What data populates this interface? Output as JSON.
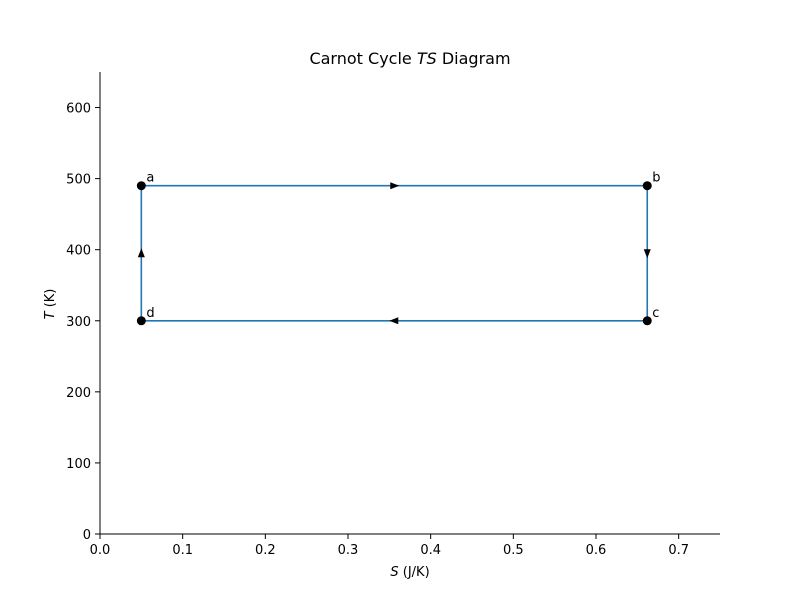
{
  "chart_data": {
    "type": "line",
    "title": {
      "prefix": "Carnot Cycle ",
      "italic": "TS",
      "suffix": " Diagram"
    },
    "xlabel": {
      "italic": "S",
      "suffix": " (J/K)"
    },
    "ylabel": {
      "italic": "T",
      "suffix": " (K)"
    },
    "xlim": [
      0.0,
      0.75
    ],
    "ylim": [
      0,
      650
    ],
    "xticks": [
      0.0,
      0.1,
      0.2,
      0.3,
      0.4,
      0.5,
      0.6,
      0.7
    ],
    "xtick_labels": [
      "0.0",
      "0.1",
      "0.2",
      "0.3",
      "0.4",
      "0.5",
      "0.6",
      "0.7"
    ],
    "yticks": [
      0,
      100,
      200,
      300,
      400,
      500,
      600
    ],
    "ytick_labels": [
      "0",
      "100",
      "200",
      "300",
      "400",
      "500",
      "600"
    ],
    "grid": false,
    "line_color": "#1f77b4",
    "point_color": "#000000",
    "series": [
      {
        "x": [
          0.05,
          0.662,
          0.662,
          0.05,
          0.05
        ],
        "y": [
          490,
          490,
          300,
          300,
          490
        ]
      }
    ],
    "points": [
      {
        "label": "a",
        "x": 0.05,
        "y": 490
      },
      {
        "label": "b",
        "x": 0.662,
        "y": 490
      },
      {
        "label": "c",
        "x": 0.662,
        "y": 300
      },
      {
        "label": "d",
        "x": 0.05,
        "y": 300
      }
    ],
    "arrows": [
      {
        "x": 0.356,
        "y": 490,
        "dir": "right"
      },
      {
        "x": 0.662,
        "y": 395,
        "dir": "down"
      },
      {
        "x": 0.356,
        "y": 300,
        "dir": "left"
      },
      {
        "x": 0.05,
        "y": 395,
        "dir": "up"
      }
    ]
  }
}
